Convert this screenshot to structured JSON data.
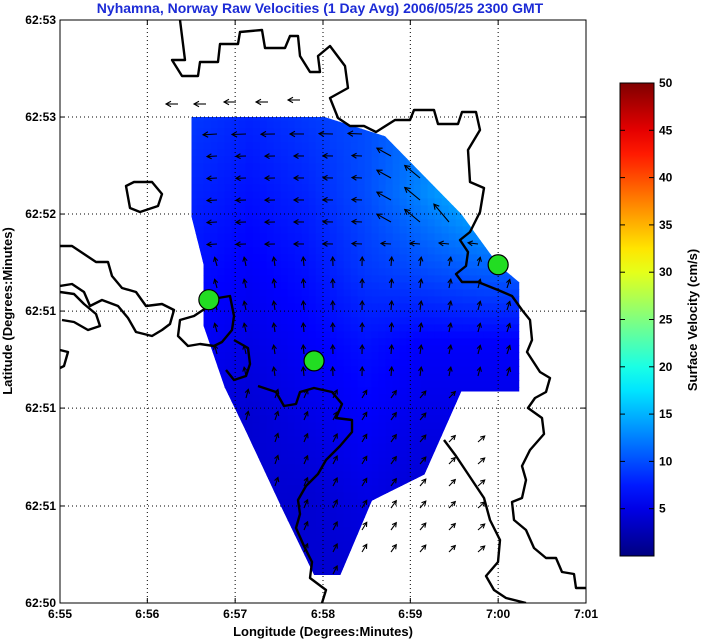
{
  "chart_data": {
    "type": "heatmap",
    "title": "Nyhamna, Norway Raw Velocities (1 Day Avg) 2006/05/25 2300 GMT",
    "xlabel": "Longitude (Degrees:Minutes)",
    "ylabel": "Latitude (Degrees:Minutes)",
    "x_ticks": [
      "6:55",
      "6:56",
      "6:57",
      "6:58",
      "6:59",
      "7:00",
      "7:01"
    ],
    "x_values": [
      6.9167,
      6.9333,
      6.95,
      6.9667,
      6.9833,
      7.0,
      7.0167
    ],
    "y_ticks": [
      "62:50",
      "62:51",
      "62:51",
      "62:51",
      "62:52",
      "62:53",
      "62:53"
    ],
    "y_values": [
      62.8333,
      62.8444,
      62.8556,
      62.8667,
      62.8778,
      62.8889,
      62.9
    ],
    "xlim": [
      6.9167,
      7.0167
    ],
    "ylim": [
      62.8333,
      62.9
    ],
    "grid": true,
    "colorbar": {
      "label": "Surface Velocity (cm/s)",
      "range": [
        0,
        50
      ],
      "ticks": [
        "5",
        "10",
        "15",
        "20",
        "25",
        "30",
        "35",
        "40",
        "45",
        "50"
      ],
      "tick_values": [
        5,
        10,
        15,
        20,
        25,
        30,
        35,
        40,
        45,
        50
      ],
      "colormap": "jet"
    },
    "coverage_region_lonlat": [
      [
        6.9417,
        62.8889
      ],
      [
        6.967,
        62.8889
      ],
      [
        6.9785,
        62.8867
      ],
      [
        6.993,
        62.8778
      ],
      [
        7.0,
        62.872
      ],
      [
        7.004,
        62.87
      ],
      [
        7.004,
        62.8575
      ],
      [
        6.993,
        62.8575
      ],
      [
        6.986,
        62.848
      ],
      [
        6.976,
        62.845
      ],
      [
        6.97,
        62.8365
      ],
      [
        6.965,
        62.8365
      ],
      [
        6.959,
        62.844
      ],
      [
        6.952,
        62.853
      ],
      [
        6.948,
        62.858
      ],
      [
        6.944,
        62.865
      ],
      [
        6.944,
        62.872
      ],
      [
        6.9417,
        62.8775
      ]
    ],
    "speed_field": {
      "lons": [
        6.9417,
        6.953,
        6.964,
        6.975,
        6.986,
        6.997
      ],
      "lats": [
        62.8889,
        62.88,
        62.8711,
        62.8622,
        62.8533,
        62.8444,
        62.837
      ],
      "values_cm_s": [
        [
          9,
          8,
          9,
          10,
          12,
          13
        ],
        [
          8,
          7,
          8,
          10,
          13,
          16
        ],
        [
          7,
          6,
          7,
          9,
          10,
          11
        ],
        [
          6,
          5,
          6,
          7,
          6,
          6
        ],
        [
          5,
          4,
          5,
          6,
          5,
          5
        ],
        [
          4,
          4,
          4,
          5,
          4,
          4
        ],
        [
          4,
          3,
          4,
          4,
          4,
          4
        ]
      ]
    },
    "sites": [
      {
        "lon": 6.945,
        "lat": 62.868
      },
      {
        "lon": 6.965,
        "lat": 62.861
      },
      {
        "lon": 7.0,
        "lat": 62.872
      }
    ]
  }
}
